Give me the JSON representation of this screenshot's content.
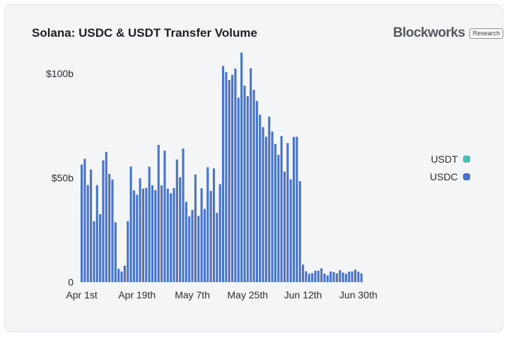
{
  "header": {
    "title": "Solana: USDC & USDT Transfer Volume",
    "brand": "Blockworks",
    "badge": "Research"
  },
  "legend": [
    {
      "label": "USDT",
      "color": "#4dbdb6"
    },
    {
      "label": "USDC",
      "color": "#4a74cc"
    }
  ],
  "chart_data": {
    "type": "bar",
    "stacked": true,
    "title": "Solana: USDC & USDT Transfer Volume",
    "xlabel": "",
    "ylabel": "",
    "ylim": [
      0,
      112
    ],
    "yticks": [
      {
        "value": 0,
        "label": "0"
      },
      {
        "value": 50,
        "label": "$50b"
      },
      {
        "value": 100,
        "label": "$100b"
      }
    ],
    "xticks": [
      {
        "index": 0,
        "label": "Apr 1st"
      },
      {
        "index": 18,
        "label": "Apr 19th"
      },
      {
        "index": 36,
        "label": "May 7th"
      },
      {
        "index": 54,
        "label": "May 25th"
      },
      {
        "index": 72,
        "label": "Jun 12th"
      },
      {
        "index": 90,
        "label": "Jun 30th"
      }
    ],
    "grid": false,
    "legend_position": "right",
    "series": [
      {
        "name": "USDC",
        "color": "#4a74cc",
        "values": [
          56.3,
          59.1,
          46.5,
          54.0,
          29.2,
          46.5,
          32.6,
          58.4,
          62.4,
          51.9,
          49.2,
          28.7,
          6.4,
          5.1,
          7.9,
          29.3,
          55.4,
          44.0,
          41.9,
          49.8,
          44.8,
          45.2,
          55.3,
          46.4,
          44.1,
          65.8,
          46.4,
          63.0,
          44.8,
          42.6,
          45.1,
          58.8,
          50.3,
          64.0,
          38.5,
          31.5,
          34.6,
          51.6,
          31.8,
          45.0,
          35.1,
          55.1,
          43.7,
          54.5,
          33.2,
          47.0,
          103.6,
          100.7,
          96.9,
          99.4,
          102.4,
          88.4,
          110.0,
          94.2,
          89.1,
          102.5,
          92.2,
          86.9,
          80.2,
          74.3,
          69.7,
          79.3,
          72.2,
          66.2,
          61.0,
          70.1,
          53.0,
          66.7,
          49.3,
          69.6,
          69.7,
          48.4,
          8.4,
          5.2,
          4.0,
          4.3,
          5.5,
          5.5,
          6.6,
          4.1,
          3.2,
          5.1,
          4.8,
          4.2,
          5.7,
          4.6,
          4.0,
          5.1,
          5.1,
          6.0,
          5.0,
          4.2
        ]
      },
      {
        "name": "USDT",
        "color": "#4dbdb6",
        "values": [
          0,
          0,
          0,
          0,
          0,
          0,
          0,
          0,
          0,
          0,
          0,
          0,
          0,
          0,
          0,
          0,
          0,
          0,
          0,
          0,
          0,
          0,
          0,
          0,
          0,
          0,
          0,
          0,
          0,
          0,
          0,
          0,
          0,
          0,
          0,
          0,
          0,
          0,
          0,
          0,
          0,
          0,
          0,
          0,
          0,
          0,
          0,
          0,
          0,
          0,
          0,
          0,
          0,
          0,
          0,
          0,
          0,
          0,
          0,
          0,
          0,
          0,
          0,
          0,
          0,
          0,
          0,
          0,
          0,
          0,
          0,
          0,
          0,
          0,
          0,
          0,
          0,
          0,
          0,
          0,
          0,
          0,
          0,
          0,
          0,
          0,
          0,
          0,
          0,
          0,
          0,
          0
        ]
      }
    ]
  }
}
